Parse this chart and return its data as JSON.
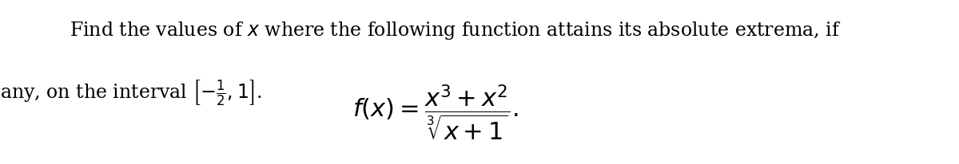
{
  "line1": "Find the values of $x$ where the following function attains its absolute extrema, if",
  "line2": "any, on the interval $\\left[-\\frac{1}{2}, 1\\right]$.",
  "formula": "$f(x) = \\dfrac{x^3 + x^2}{\\sqrt[3]{x+1}}.$",
  "font_size_text": 17,
  "font_size_formula": 22,
  "bg_color": "#ffffff",
  "text_color": "#000000"
}
